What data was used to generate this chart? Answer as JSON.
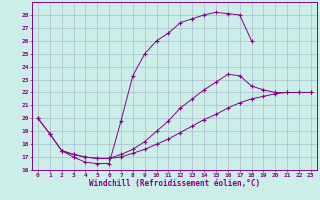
{
  "xlabel": "Windchill (Refroidissement éolien,°C)",
  "bg_color": "#cceee8",
  "grid_color": "#aabbcc",
  "line_color": "#880088",
  "xlim": [
    -0.5,
    23.5
  ],
  "ylim": [
    16,
    29
  ],
  "xticks": [
    0,
    1,
    2,
    3,
    4,
    5,
    6,
    7,
    8,
    9,
    10,
    11,
    12,
    13,
    14,
    15,
    16,
    17,
    18,
    19,
    20,
    21,
    22,
    23
  ],
  "yticks": [
    16,
    17,
    18,
    19,
    20,
    21,
    22,
    23,
    24,
    25,
    26,
    27,
    28
  ],
  "curves": [
    {
      "x": [
        0,
        1,
        2,
        3,
        4,
        5,
        6,
        7,
        8,
        9,
        10,
        11,
        12,
        13,
        14,
        15,
        16,
        17,
        18
      ],
      "y": [
        20,
        18.8,
        17.5,
        17.0,
        16.6,
        16.5,
        16.5,
        19.8,
        23.3,
        25.0,
        26.0,
        26.6,
        27.4,
        27.7,
        28.0,
        28.2,
        28.1,
        28.0,
        26.0
      ]
    },
    {
      "x": [
        0,
        1,
        2,
        3,
        4,
        5,
        6,
        7,
        8,
        9,
        10,
        11,
        12,
        13,
        14,
        15,
        16,
        17,
        18,
        19,
        20,
        21,
        22,
        23
      ],
      "y": [
        20,
        18.8,
        17.5,
        17.2,
        17.0,
        16.9,
        16.9,
        17.2,
        17.6,
        18.2,
        19.0,
        19.8,
        20.8,
        21.5,
        22.2,
        22.8,
        23.4,
        23.3,
        22.5,
        22.2,
        22.0,
        22.0,
        22.0,
        22.0
      ]
    },
    {
      "x": [
        2,
        3,
        4,
        5,
        6,
        7,
        8,
        9,
        10,
        11,
        12,
        13,
        14,
        15,
        16,
        17,
        18,
        19,
        20,
        21,
        22,
        23
      ],
      "y": [
        17.5,
        17.2,
        17.0,
        16.9,
        16.9,
        17.0,
        17.3,
        17.6,
        18.0,
        18.4,
        18.9,
        19.4,
        19.9,
        20.3,
        20.8,
        21.2,
        21.5,
        21.7,
        21.9,
        22.0,
        22.0,
        22.0
      ]
    }
  ]
}
